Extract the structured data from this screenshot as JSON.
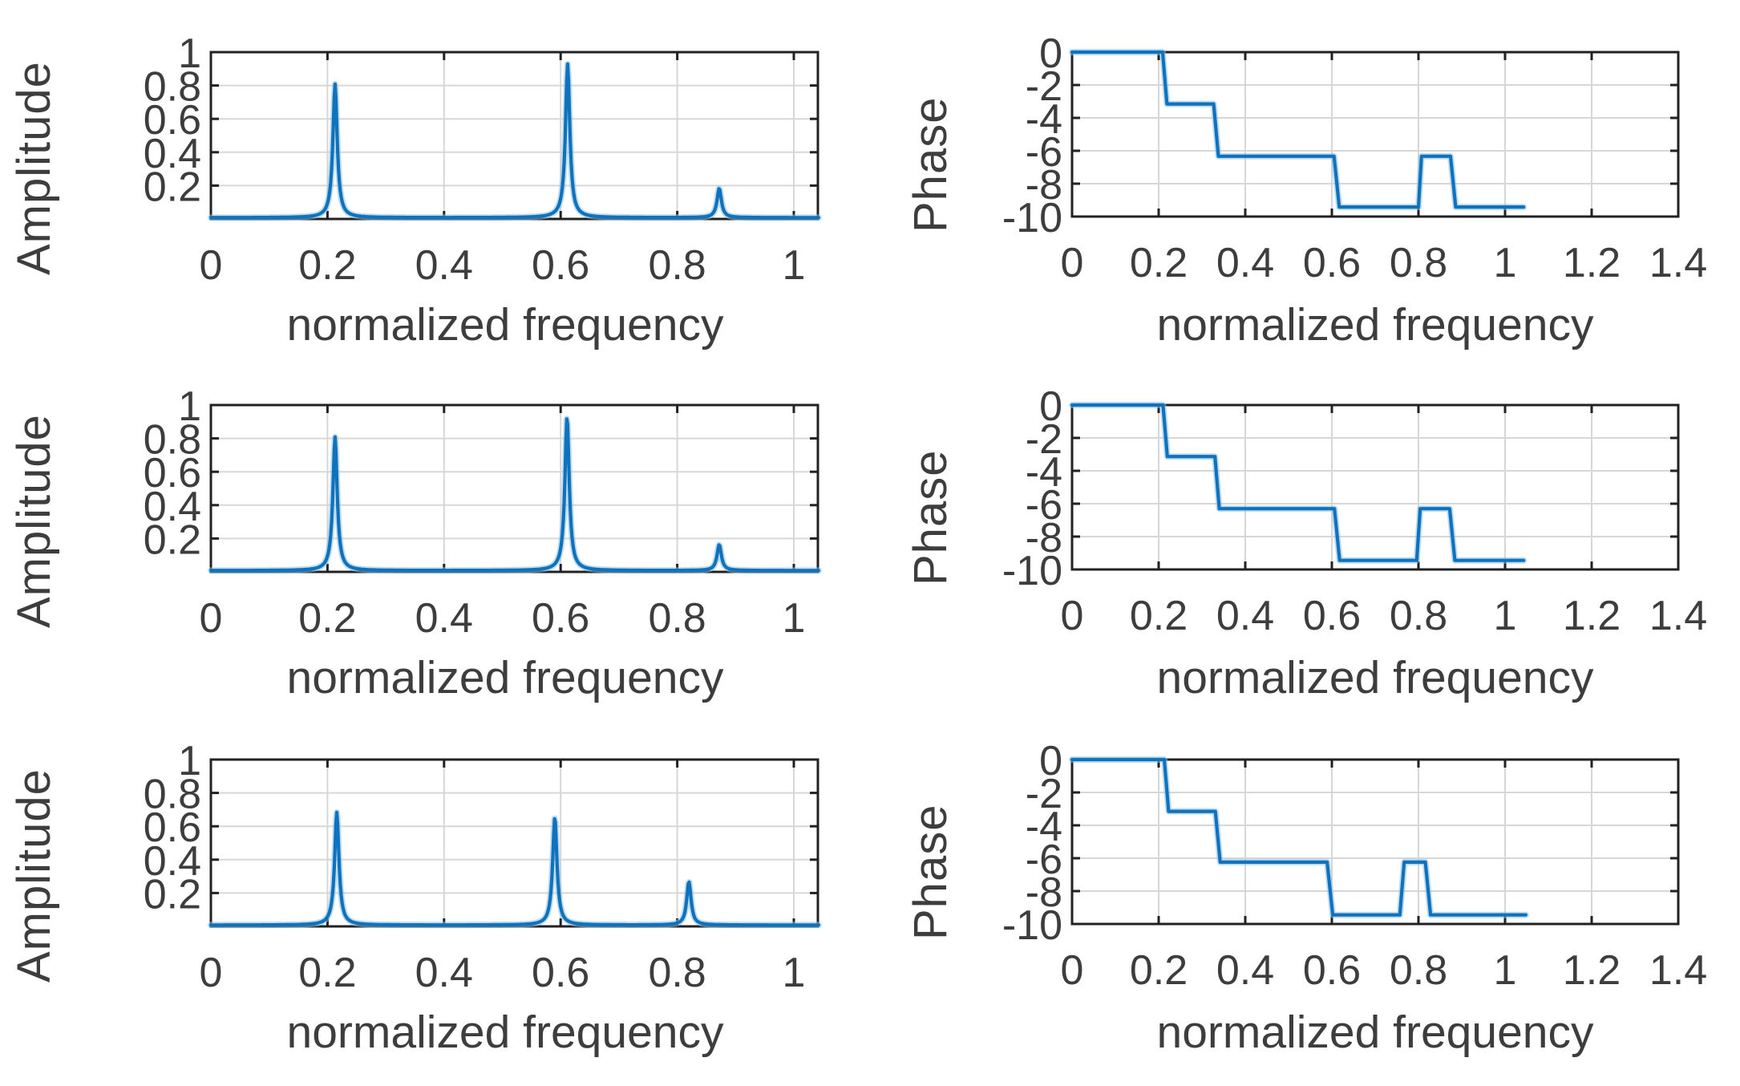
{
  "figure": {
    "background": "#ffffff",
    "line_color": "#0e72bd",
    "line_halo_color": "#8cbfe6",
    "grid_color": "#d7d7d7",
    "axis_color": "#222222",
    "text_color": "#3d3d3d"
  },
  "chart_data": [
    {
      "type": "line",
      "kind": "amplitude",
      "row": 1,
      "col": 1,
      "title": "",
      "xlabel": "normalized frequency",
      "ylabel": "Amplitude",
      "xlim": [
        0,
        1.043
      ],
      "ylim": [
        0,
        1
      ],
      "grid": true,
      "legend": false,
      "xticks": [
        {
          "v": 0,
          "label": "0"
        },
        {
          "v": 0.2,
          "label": "0.2"
        },
        {
          "v": 0.4,
          "label": "0.4"
        },
        {
          "v": 0.6,
          "label": "0.6"
        },
        {
          "v": 0.8,
          "label": "0.8"
        },
        {
          "v": 1,
          "label": "1"
        }
      ],
      "yticks": [
        {
          "v": 1,
          "label": "1"
        },
        {
          "v": 0.8,
          "label": "0.8"
        },
        {
          "v": 0.6,
          "label": "0.6"
        },
        {
          "v": 0.4,
          "label": "0.4"
        },
        {
          "v": 0.2,
          "label": "0.2"
        }
      ],
      "peaks": [
        {
          "x": 0.213,
          "amp": 0.8
        },
        {
          "x": 0.612,
          "amp": 0.92
        },
        {
          "x": 0.872,
          "amp": 0.175
        }
      ],
      "peak_width": 0.0045,
      "baseline": 0.008
    },
    {
      "type": "line",
      "kind": "phase",
      "row": 1,
      "col": 2,
      "title": "",
      "xlabel": "normalized frequency",
      "ylabel": "Phase",
      "xlim": [
        0,
        1.4
      ],
      "ylim": [
        -10,
        0
      ],
      "grid": true,
      "legend": false,
      "xticks": [
        {
          "v": 0,
          "label": "0"
        },
        {
          "v": 0.2,
          "label": "0.2"
        },
        {
          "v": 0.4,
          "label": "0.4"
        },
        {
          "v": 0.6,
          "label": "0.6"
        },
        {
          "v": 0.8,
          "label": "0.8"
        },
        {
          "v": 1,
          "label": "1"
        },
        {
          "v": 1.2,
          "label": "1.2"
        },
        {
          "v": 1.4,
          "label": "1.4"
        }
      ],
      "yticks": [
        {
          "v": 0,
          "label": "0"
        },
        {
          "v": -2,
          "label": "-2"
        },
        {
          "v": -4,
          "label": "-4"
        },
        {
          "v": -6,
          "label": "-6"
        },
        {
          "v": -8,
          "label": "-8"
        },
        {
          "v": -10,
          "label": "-10"
        }
      ],
      "plateaus": [
        [
          0,
          0.209,
          0
        ],
        [
          0.219,
          0.327,
          -3.15
        ],
        [
          0.338,
          0.605,
          -6.33
        ],
        [
          0.617,
          0.8,
          -9.42
        ],
        [
          0.807,
          0.874,
          -6.33
        ],
        [
          0.886,
          1.043,
          -9.42
        ]
      ]
    },
    {
      "type": "line",
      "kind": "amplitude",
      "row": 2,
      "col": 1,
      "title": "",
      "xlabel": "normalized frequency",
      "ylabel": "Amplitude",
      "xlim": [
        0,
        1.043
      ],
      "ylim": [
        0,
        1
      ],
      "grid": true,
      "legend": false,
      "xticks": [
        {
          "v": 0,
          "label": "0"
        },
        {
          "v": 0.2,
          "label": "0.2"
        },
        {
          "v": 0.4,
          "label": "0.4"
        },
        {
          "v": 0.6,
          "label": "0.6"
        },
        {
          "v": 0.8,
          "label": "0.8"
        },
        {
          "v": 1,
          "label": "1"
        }
      ],
      "yticks": [
        {
          "v": 1,
          "label": "1"
        },
        {
          "v": 0.8,
          "label": "0.8"
        },
        {
          "v": 0.6,
          "label": "0.6"
        },
        {
          "v": 0.4,
          "label": "0.4"
        },
        {
          "v": 0.2,
          "label": "0.2"
        }
      ],
      "peaks": [
        {
          "x": 0.213,
          "amp": 0.8
        },
        {
          "x": 0.611,
          "amp": 0.92
        },
        {
          "x": 0.872,
          "amp": 0.155
        }
      ],
      "peak_width": 0.0045,
      "baseline": 0.008
    },
    {
      "type": "line",
      "kind": "phase",
      "row": 2,
      "col": 2,
      "title": "",
      "xlabel": "normalized frequency",
      "ylabel": "Phase",
      "xlim": [
        0,
        1.4
      ],
      "ylim": [
        -10,
        0
      ],
      "grid": true,
      "legend": false,
      "xticks": [
        {
          "v": 0,
          "label": "0"
        },
        {
          "v": 0.2,
          "label": "0.2"
        },
        {
          "v": 0.4,
          "label": "0.4"
        },
        {
          "v": 0.6,
          "label": "0.6"
        },
        {
          "v": 0.8,
          "label": "0.8"
        },
        {
          "v": 1,
          "label": "1"
        },
        {
          "v": 1.2,
          "label": "1.2"
        },
        {
          "v": 1.4,
          "label": "1.4"
        }
      ],
      "yticks": [
        {
          "v": 0,
          "label": "0"
        },
        {
          "v": -2,
          "label": "-2"
        },
        {
          "v": -4,
          "label": "-4"
        },
        {
          "v": -6,
          "label": "-6"
        },
        {
          "v": -8,
          "label": "-8"
        },
        {
          "v": -10,
          "label": "-10"
        }
      ],
      "plateaus": [
        [
          0,
          0.21,
          0
        ],
        [
          0.22,
          0.33,
          -3.13
        ],
        [
          0.34,
          0.606,
          -6.3
        ],
        [
          0.618,
          0.796,
          -9.45
        ],
        [
          0.804,
          0.872,
          -6.3
        ],
        [
          0.884,
          1.043,
          -9.45
        ]
      ]
    },
    {
      "type": "line",
      "kind": "amplitude",
      "row": 3,
      "col": 1,
      "title": "",
      "xlabel": "normalized frequency",
      "ylabel": "Amplitude",
      "xlim": [
        0,
        1.043
      ],
      "ylim": [
        0,
        1
      ],
      "grid": true,
      "legend": false,
      "xticks": [
        {
          "v": 0,
          "label": "0"
        },
        {
          "v": 0.2,
          "label": "0.2"
        },
        {
          "v": 0.4,
          "label": "0.4"
        },
        {
          "v": 0.6,
          "label": "0.6"
        },
        {
          "v": 0.8,
          "label": "0.8"
        },
        {
          "v": 1,
          "label": "1"
        }
      ],
      "yticks": [
        {
          "v": 1,
          "label": "1"
        },
        {
          "v": 0.8,
          "label": "0.8"
        },
        {
          "v": 0.6,
          "label": "0.6"
        },
        {
          "v": 0.4,
          "label": "0.4"
        },
        {
          "v": 0.2,
          "label": "0.2"
        }
      ],
      "peaks": [
        {
          "x": 0.216,
          "amp": 0.675
        },
        {
          "x": 0.59,
          "amp": 0.645
        },
        {
          "x": 0.82,
          "amp": 0.26
        }
      ],
      "peak_width": 0.0045,
      "baseline": 0.008
    },
    {
      "type": "line",
      "kind": "phase",
      "row": 3,
      "col": 2,
      "title": "",
      "xlabel": "normalized frequency",
      "ylabel": "Phase",
      "xlim": [
        0,
        1.4
      ],
      "ylim": [
        -10,
        0
      ],
      "grid": true,
      "legend": false,
      "xticks": [
        {
          "v": 0,
          "label": "0"
        },
        {
          "v": 0.2,
          "label": "0.2"
        },
        {
          "v": 0.4,
          "label": "0.4"
        },
        {
          "v": 0.6,
          "label": "0.6"
        },
        {
          "v": 0.8,
          "label": "0.8"
        },
        {
          "v": 1,
          "label": "1"
        },
        {
          "v": 1.2,
          "label": "1.2"
        },
        {
          "v": 1.4,
          "label": "1.4"
        }
      ],
      "yticks": [
        {
          "v": 0,
          "label": "0"
        },
        {
          "v": -2,
          "label": "-2"
        },
        {
          "v": -4,
          "label": "-4"
        },
        {
          "v": -6,
          "label": "-6"
        },
        {
          "v": -8,
          "label": "-8"
        },
        {
          "v": -10,
          "label": "-10"
        }
      ],
      "plateaus": [
        [
          0,
          0.213,
          0
        ],
        [
          0.223,
          0.331,
          -3.15
        ],
        [
          0.342,
          0.589,
          -6.24
        ],
        [
          0.602,
          0.757,
          -9.45
        ],
        [
          0.767,
          0.816,
          -6.24
        ],
        [
          0.828,
          1.048,
          -9.45
        ]
      ]
    }
  ]
}
